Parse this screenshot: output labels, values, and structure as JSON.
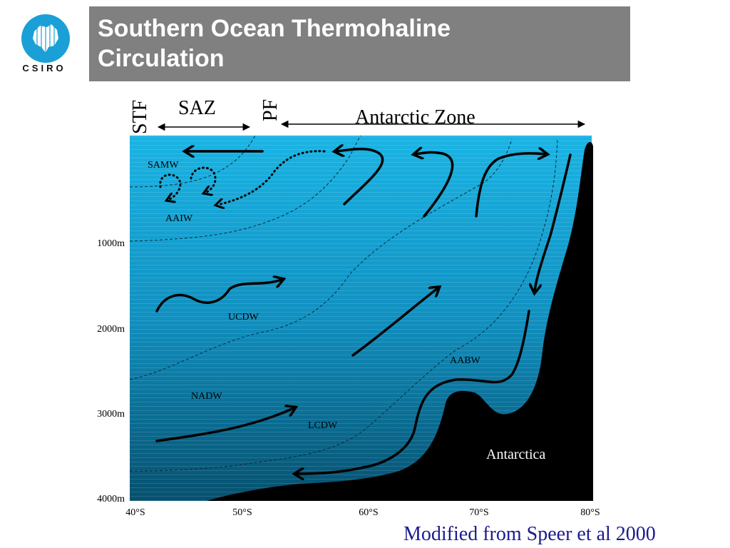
{
  "header": {
    "title_line1": "Southern Ocean Thermohaline",
    "title_line2": "Circulation",
    "logo_text": "CSIRO",
    "accent_color": "#808080"
  },
  "diagram": {
    "fronts": {
      "stf": "STF",
      "saz": "SAZ",
      "pf": "PF",
      "antarctic_zone": "Antarctic Zone"
    },
    "water_masses": {
      "samw": "SAMW",
      "aaiw": "AAIW",
      "ucdw": "UCDW",
      "nadw": "NADW",
      "lcdw": "LCDW",
      "aabw": "AABW",
      "antarctica": "Antarctica"
    },
    "depth_labels": [
      "1000m",
      "2000m",
      "3000m",
      "4000m"
    ],
    "latitude_labels": [
      "40°S",
      "50°S",
      "60°S",
      "70°S",
      "80°S"
    ],
    "ocean_color_top": "#1aa8d8",
    "ocean_color_bottom": "#06506e"
  },
  "footer": {
    "credit": "Modified from Speer et al 2000"
  }
}
